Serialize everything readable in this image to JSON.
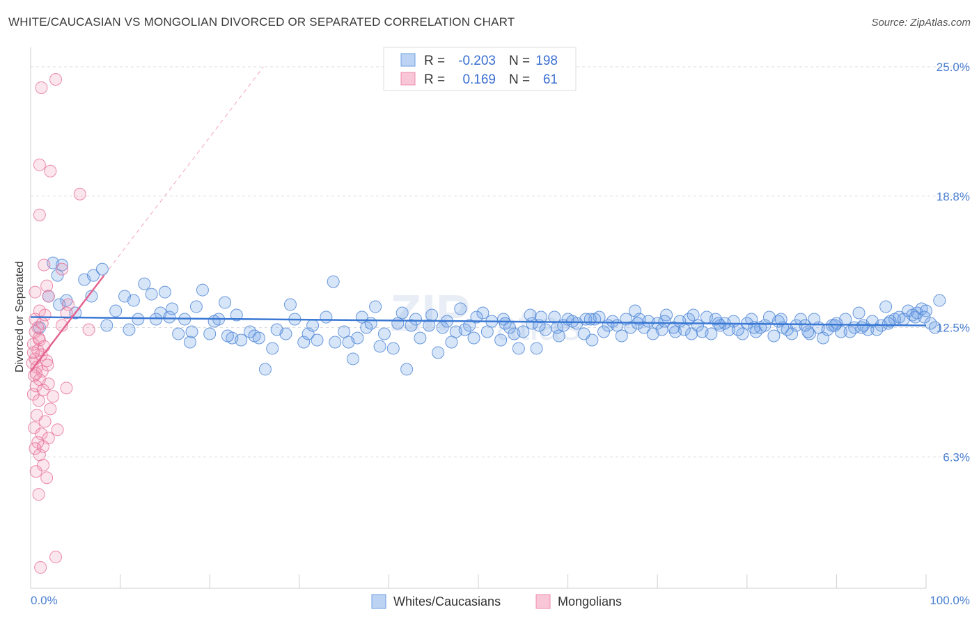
{
  "title": "WHITE/CAUCASIAN VS MONGOLIAN DIVORCED OR SEPARATED CORRELATION CHART",
  "source": "Source: ZipAtlas.com",
  "watermark": {
    "part1": "ZIP",
    "part2": "atlas"
  },
  "chart_data": {
    "type": "scatter",
    "title": "WHITE/CAUCASIAN VS MONGOLIAN DIVORCED OR SEPARATED CORRELATION CHART",
    "xlabel": "",
    "ylabel": "Divorced or Separated",
    "xlim": [
      0,
      100
    ],
    "ylim": [
      0,
      25.0
    ],
    "x_tick_labels": {
      "min": "0.0%",
      "max": "100.0%"
    },
    "y_ticks": [
      {
        "value": 25.0,
        "label": "25.0%"
      },
      {
        "value": 18.8,
        "label": "18.8%"
      },
      {
        "value": 12.5,
        "label": "12.5%"
      },
      {
        "value": 6.3,
        "label": "6.3%"
      }
    ],
    "legend": [
      {
        "r_label": "R =",
        "r_value": "-0.203",
        "n_label": "N =",
        "n_value": "198",
        "color": "#6ea0e6"
      },
      {
        "r_label": "R =",
        "r_value": "0.169",
        "n_label": "N =",
        "n_value": "61",
        "color": "#f08cab"
      }
    ],
    "series": [
      {
        "name": "Whites/Caucasians",
        "color": "#6ea0e6",
        "line_color": "#3a78d4",
        "trend": {
          "x0": 0,
          "y0": 13.0,
          "x1": 100,
          "y1": 12.6
        },
        "points": [
          [
            1.0,
            12.5
          ],
          [
            2.0,
            14.0
          ],
          [
            2.5,
            15.6
          ],
          [
            3.0,
            15.0
          ],
          [
            3.5,
            15.5
          ],
          [
            4.0,
            13.8
          ],
          [
            5.0,
            13.2
          ],
          [
            6.0,
            14.8
          ],
          [
            7.0,
            15.0
          ],
          [
            8.0,
            15.3
          ],
          [
            8.5,
            12.6
          ],
          [
            9.5,
            13.3
          ],
          [
            10.5,
            14.0
          ],
          [
            11.5,
            13.8
          ],
          [
            12.0,
            12.9
          ],
          [
            12.7,
            14.6
          ],
          [
            13.5,
            14.1
          ],
          [
            14.5,
            13.2
          ],
          [
            15.0,
            14.2
          ],
          [
            15.5,
            13.0
          ],
          [
            16.5,
            12.2
          ],
          [
            17.2,
            12.9
          ],
          [
            17.8,
            11.8
          ],
          [
            18.5,
            13.5
          ],
          [
            19.2,
            14.3
          ],
          [
            20.0,
            12.2
          ],
          [
            21.0,
            12.9
          ],
          [
            21.7,
            13.7
          ],
          [
            22.5,
            12.0
          ],
          [
            23.5,
            11.9
          ],
          [
            24.5,
            12.3
          ],
          [
            25.0,
            12.1
          ],
          [
            26.2,
            10.5
          ],
          [
            27.0,
            11.5
          ],
          [
            28.5,
            12.2
          ],
          [
            29.5,
            12.9
          ],
          [
            30.5,
            11.8
          ],
          [
            31.0,
            12.2
          ],
          [
            32.0,
            11.9
          ],
          [
            33.0,
            13.0
          ],
          [
            34.0,
            11.8
          ],
          [
            35.0,
            12.3
          ],
          [
            36.0,
            11.0
          ],
          [
            36.5,
            12.0
          ],
          [
            37.5,
            12.5
          ],
          [
            38.5,
            13.5
          ],
          [
            39.5,
            12.2
          ],
          [
            40.5,
            11.5
          ],
          [
            41.5,
            13.2
          ],
          [
            42.0,
            10.5
          ],
          [
            43.5,
            12.0
          ],
          [
            44.5,
            12.6
          ],
          [
            45.5,
            11.3
          ],
          [
            46.5,
            12.8
          ],
          [
            47.0,
            11.8
          ],
          [
            48.0,
            13.4
          ],
          [
            49.0,
            12.6
          ],
          [
            49.5,
            12.0
          ],
          [
            50.5,
            13.2
          ],
          [
            51.5,
            12.8
          ],
          [
            52.5,
            11.9
          ],
          [
            53.5,
            12.5
          ],
          [
            54.5,
            11.5
          ],
          [
            55.0,
            12.3
          ],
          [
            56.0,
            12.7
          ],
          [
            56.5,
            11.5
          ],
          [
            57.5,
            12.4
          ],
          [
            58.5,
            13.0
          ],
          [
            59.0,
            12.1
          ],
          [
            60.0,
            12.9
          ],
          [
            61.0,
            12.7
          ],
          [
            62.0,
            12.9
          ],
          [
            62.7,
            11.9
          ],
          [
            63.5,
            13.0
          ],
          [
            64.5,
            12.6
          ],
          [
            65.0,
            12.8
          ],
          [
            66.0,
            12.1
          ],
          [
            67.0,
            12.5
          ],
          [
            67.5,
            13.3
          ],
          [
            68.5,
            12.5
          ],
          [
            69.5,
            12.2
          ],
          [
            70.0,
            12.7
          ],
          [
            71.0,
            13.1
          ],
          [
            72.0,
            12.3
          ],
          [
            73.0,
            12.4
          ],
          [
            73.5,
            12.9
          ],
          [
            74.5,
            12.6
          ],
          [
            75.5,
            13.0
          ],
          [
            76.0,
            12.2
          ],
          [
            77.0,
            12.6
          ],
          [
            78.0,
            12.4
          ],
          [
            78.5,
            12.8
          ],
          [
            79.5,
            12.2
          ],
          [
            80.5,
            12.9
          ],
          [
            81.0,
            12.3
          ],
          [
            82.0,
            12.6
          ],
          [
            83.0,
            12.1
          ],
          [
            83.5,
            12.8
          ],
          [
            84.5,
            12.4
          ],
          [
            85.5,
            12.6
          ],
          [
            86.0,
            12.9
          ],
          [
            87.0,
            12.2
          ],
          [
            88.0,
            12.5
          ],
          [
            88.5,
            12.0
          ],
          [
            89.5,
            12.6
          ],
          [
            90.5,
            12.3
          ],
          [
            91.0,
            12.9
          ],
          [
            92.0,
            12.5
          ],
          [
            92.5,
            13.2
          ],
          [
            93.5,
            12.4
          ],
          [
            94.0,
            12.8
          ],
          [
            95.0,
            12.6
          ],
          [
            95.5,
            13.5
          ],
          [
            96.5,
            12.9
          ],
          [
            97.0,
            13.0
          ],
          [
            98.0,
            13.3
          ],
          [
            98.5,
            13.1
          ],
          [
            99.0,
            13.2
          ],
          [
            99.5,
            13.4
          ],
          [
            100.0,
            13.3
          ],
          [
            100.5,
            12.7
          ],
          [
            101.0,
            12.5
          ],
          [
            101.5,
            13.8
          ],
          [
            3.2,
            13.6
          ],
          [
            6.8,
            14.0
          ],
          [
            11.0,
            12.4
          ],
          [
            15.8,
            13.4
          ],
          [
            20.5,
            12.8
          ],
          [
            23.0,
            13.1
          ],
          [
            27.5,
            12.4
          ],
          [
            29.0,
            13.6
          ],
          [
            33.8,
            14.7
          ],
          [
            37.0,
            13.0
          ],
          [
            39.0,
            11.6
          ],
          [
            41.0,
            12.7
          ],
          [
            43.0,
            12.9
          ],
          [
            44.8,
            13.1
          ],
          [
            47.5,
            12.3
          ],
          [
            49.8,
            13.0
          ],
          [
            51.0,
            12.3
          ],
          [
            52.8,
            12.9
          ],
          [
            54.0,
            12.2
          ],
          [
            55.8,
            13.1
          ],
          [
            57.0,
            13.0
          ],
          [
            58.8,
            12.5
          ],
          [
            60.5,
            12.8
          ],
          [
            61.8,
            12.2
          ],
          [
            63.0,
            12.9
          ],
          [
            64.0,
            12.3
          ],
          [
            66.5,
            12.9
          ],
          [
            68.0,
            12.9
          ],
          [
            69.0,
            12.8
          ],
          [
            70.5,
            12.4
          ],
          [
            71.8,
            12.5
          ],
          [
            72.5,
            12.8
          ],
          [
            74.0,
            13.1
          ],
          [
            75.0,
            12.3
          ],
          [
            76.5,
            12.9
          ],
          [
            77.5,
            12.7
          ],
          [
            79.0,
            12.4
          ],
          [
            80.0,
            12.7
          ],
          [
            81.5,
            12.5
          ],
          [
            82.5,
            13.0
          ],
          [
            84.0,
            12.5
          ],
          [
            85.0,
            12.2
          ],
          [
            86.5,
            12.6
          ],
          [
            87.5,
            12.9
          ],
          [
            89.0,
            12.4
          ],
          [
            90.0,
            12.7
          ],
          [
            91.5,
            12.3
          ],
          [
            93.0,
            12.6
          ],
          [
            94.5,
            12.4
          ],
          [
            96.0,
            12.8
          ],
          [
            97.5,
            12.9
          ],
          [
            98.8,
            13.0
          ],
          [
            14.0,
            12.9
          ],
          [
            18.0,
            12.3
          ],
          [
            22.0,
            12.1
          ],
          [
            25.5,
            12.0
          ],
          [
            31.5,
            12.6
          ],
          [
            35.5,
            11.8
          ],
          [
            38.0,
            12.7
          ],
          [
            42.5,
            12.6
          ],
          [
            46.0,
            12.5
          ],
          [
            48.5,
            12.4
          ],
          [
            53.0,
            12.7
          ],
          [
            56.8,
            12.6
          ],
          [
            59.5,
            12.6
          ],
          [
            62.5,
            12.9
          ],
          [
            65.5,
            12.6
          ],
          [
            67.8,
            12.7
          ],
          [
            70.8,
            12.8
          ],
          [
            73.8,
            12.2
          ],
          [
            76.8,
            12.7
          ],
          [
            80.8,
            12.5
          ],
          [
            83.8,
            12.9
          ],
          [
            86.8,
            12.3
          ],
          [
            89.8,
            12.6
          ],
          [
            92.8,
            12.5
          ],
          [
            95.8,
            12.7
          ],
          [
            99.8,
            13.0
          ]
        ]
      },
      {
        "name": "Mongolians",
        "color": "#f08cab",
        "line_color": "#e4638f",
        "trend": {
          "x0": 0,
          "y0": 10.4,
          "x1": 8.2,
          "y1": 15.0
        },
        "trend_ext": {
          "x0": 8.2,
          "y0": 15.0,
          "x1": 26.0,
          "y1": 25.0
        },
        "points": [
          [
            1.2,
            24.0
          ],
          [
            2.8,
            24.4
          ],
          [
            1.0,
            20.3
          ],
          [
            2.2,
            20.0
          ],
          [
            5.5,
            18.9
          ],
          [
            1.0,
            17.9
          ],
          [
            1.5,
            15.5
          ],
          [
            1.8,
            14.5
          ],
          [
            0.5,
            14.2
          ],
          [
            2.0,
            14.0
          ],
          [
            4.2,
            13.6
          ],
          [
            4.0,
            13.2
          ],
          [
            1.0,
            13.3
          ],
          [
            0.5,
            12.9
          ],
          [
            1.3,
            12.7
          ],
          [
            3.5,
            12.6
          ],
          [
            6.5,
            12.4
          ],
          [
            0.5,
            12.3
          ],
          [
            1.0,
            11.9
          ],
          [
            0.3,
            11.7
          ],
          [
            1.5,
            11.6
          ],
          [
            0.8,
            11.4
          ],
          [
            1.2,
            11.2
          ],
          [
            0.5,
            11.0
          ],
          [
            1.8,
            10.9
          ],
          [
            0.2,
            10.8
          ],
          [
            0.7,
            10.6
          ],
          [
            1.3,
            10.4
          ],
          [
            0.4,
            10.2
          ],
          [
            1.0,
            10.0
          ],
          [
            2.0,
            9.8
          ],
          [
            0.6,
            9.7
          ],
          [
            1.4,
            9.5
          ],
          [
            4.0,
            9.6
          ],
          [
            0.3,
            9.3
          ],
          [
            0.9,
            9.0
          ],
          [
            2.2,
            8.6
          ],
          [
            0.7,
            8.3
          ],
          [
            1.6,
            8.0
          ],
          [
            0.4,
            7.7
          ],
          [
            1.2,
            7.4
          ],
          [
            2.0,
            7.2
          ],
          [
            0.8,
            7.0
          ],
          [
            0.5,
            6.7
          ],
          [
            1.0,
            6.4
          ],
          [
            1.4,
            5.9
          ],
          [
            0.6,
            5.6
          ],
          [
            1.8,
            5.3
          ],
          [
            0.9,
            4.5
          ],
          [
            2.8,
            1.5
          ],
          [
            1.1,
            1.0
          ],
          [
            3.5,
            15.3
          ],
          [
            0.8,
            12.5
          ],
          [
            1.6,
            13.1
          ],
          [
            0.3,
            11.3
          ],
          [
            1.9,
            10.7
          ],
          [
            0.6,
            10.3
          ],
          [
            0.9,
            12.0
          ],
          [
            2.5,
            9.2
          ],
          [
            1.4,
            6.8
          ],
          [
            3.0,
            7.6
          ]
        ]
      }
    ],
    "bottom_legend": [
      "Whites/Caucasians",
      "Mongolians"
    ]
  }
}
